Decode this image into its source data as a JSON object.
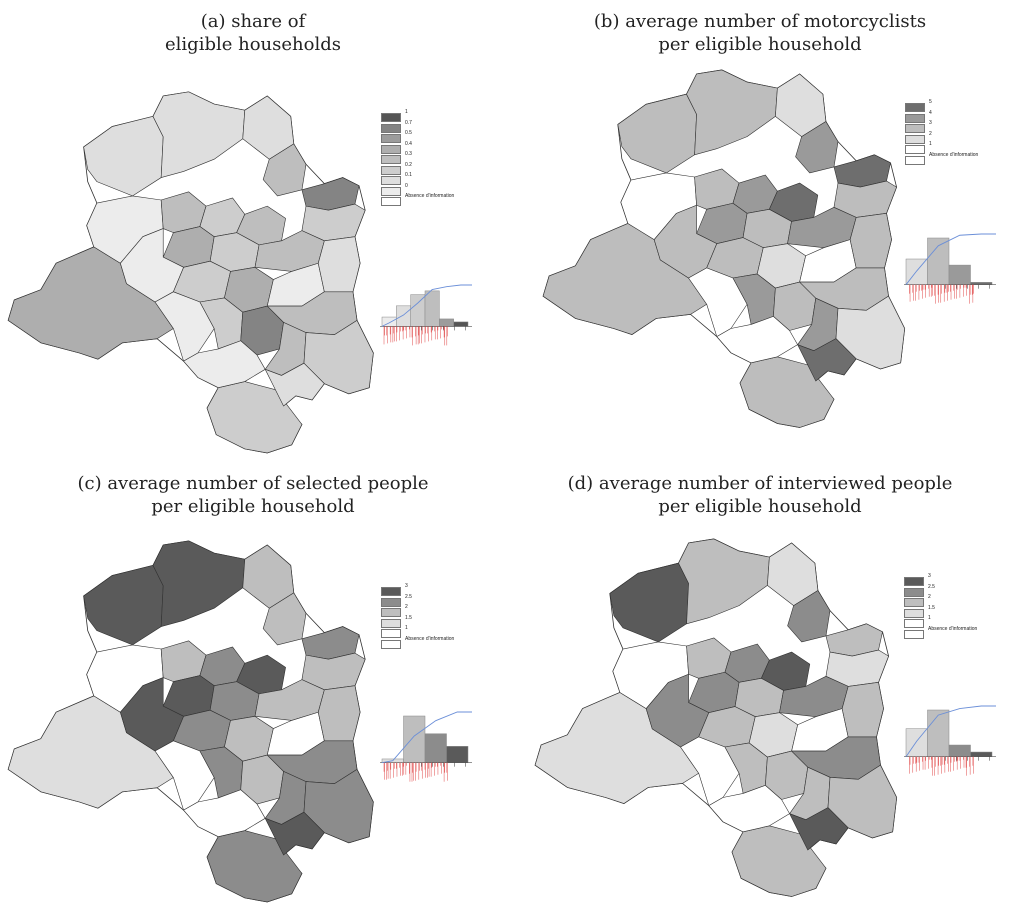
{
  "panels": [
    {
      "id": "a",
      "title_lines": [
        "(a) share of",
        "eligible households"
      ],
      "legend": {
        "entries": [
          {
            "label": "1",
            "color": "#555555"
          },
          {
            "label": "0.7",
            "color": "#848484"
          },
          {
            "label": "0.5",
            "color": "#9c9c9c"
          },
          {
            "label": "0.4",
            "color": "#aeaeae"
          },
          {
            "label": "0.3",
            "color": "#bebebe"
          },
          {
            "label": "0.2",
            "color": "#cdcdcd"
          },
          {
            "label": "0.1",
            "color": "#dedede"
          },
          {
            "label": "0",
            "color": "#ececec"
          },
          {
            "label": "Absence d'information",
            "color": "#ffffff"
          }
        ]
      },
      "histogram": {
        "bars": [
          {
            "value": 0.25,
            "color": "#ececec"
          },
          {
            "value": 0.55,
            "color": "#dedede"
          },
          {
            "value": 0.85,
            "color": "#cdcdcd"
          },
          {
            "value": 0.95,
            "color": "#bebebe"
          },
          {
            "value": 0.2,
            "color": "#9c9c9c"
          },
          {
            "value": 0.12,
            "color": "#555555"
          }
        ]
      }
    },
    {
      "id": "b",
      "title_lines": [
        "(b) average number of motorcyclists",
        "per eligible household"
      ],
      "legend": {
        "entries": [
          {
            "label": "5",
            "color": "#6e6e6e"
          },
          {
            "label": "4",
            "color": "#9a9a9a"
          },
          {
            "label": "3",
            "color": "#bdbdbd"
          },
          {
            "label": "2",
            "color": "#dedede"
          },
          {
            "label": "1",
            "color": "#ffffff"
          },
          {
            "label": "Absence d'information",
            "color": "#ffffff"
          }
        ]
      },
      "histogram": {
        "bars": [
          {
            "value": 0.55,
            "color": "#dedede"
          },
          {
            "value": 1.0,
            "color": "#bdbdbd"
          },
          {
            "value": 0.42,
            "color": "#9a9a9a"
          },
          {
            "value": 0.05,
            "color": "#6e6e6e"
          }
        ]
      }
    },
    {
      "id": "c",
      "title_lines": [
        "(c) average number of selected people",
        "per eligible household"
      ],
      "legend": {
        "entries": [
          {
            "label": "3",
            "color": "#5a5a5a"
          },
          {
            "label": "2.5",
            "color": "#8c8c8c"
          },
          {
            "label": "2",
            "color": "#bebebe"
          },
          {
            "label": "1.5",
            "color": "#dedede"
          },
          {
            "label": "1",
            "color": "#ffffff"
          },
          {
            "label": "Absence d'information",
            "color": "#ffffff"
          }
        ]
      },
      "histogram": {
        "bars": [
          {
            "value": 0.08,
            "color": "#dedede"
          },
          {
            "value": 1.0,
            "color": "#bebebe"
          },
          {
            "value": 0.62,
            "color": "#8c8c8c"
          },
          {
            "value": 0.35,
            "color": "#5a5a5a"
          }
        ]
      }
    },
    {
      "id": "d",
      "title_lines": [
        "(d) average number of interviewed people",
        "per eligible household"
      ],
      "legend": {
        "entries": [
          {
            "label": "3",
            "color": "#5a5a5a"
          },
          {
            "label": "2.5",
            "color": "#8c8c8c"
          },
          {
            "label": "2",
            "color": "#bebebe"
          },
          {
            "label": "1.5",
            "color": "#dedede"
          },
          {
            "label": "1",
            "color": "#ffffff"
          },
          {
            "label": "Absence d'information",
            "color": "#ffffff"
          }
        ]
      },
      "histogram": {
        "bars": [
          {
            "value": 0.6,
            "color": "#dedede"
          },
          {
            "value": 1.0,
            "color": "#bebebe"
          },
          {
            "value": 0.25,
            "color": "#8c8c8c"
          },
          {
            "value": 0.1,
            "color": "#5a5a5a"
          }
        ]
      }
    }
  ]
}
